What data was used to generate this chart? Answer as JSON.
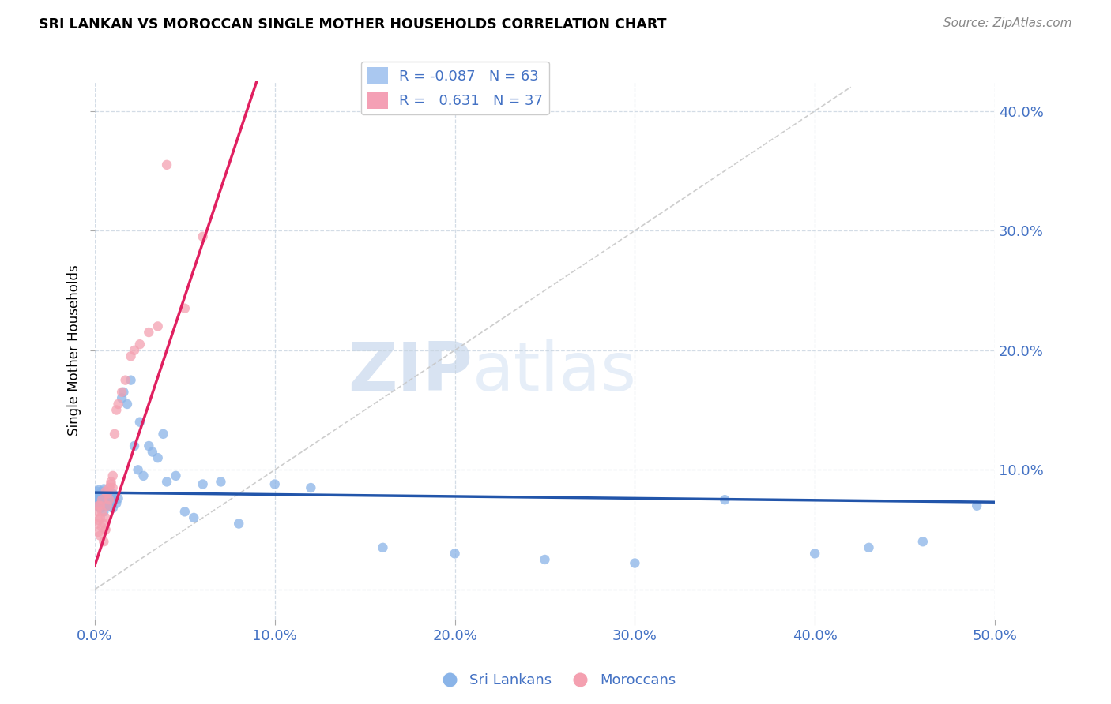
{
  "title": "SRI LANKAN VS MOROCCAN SINGLE MOTHER HOUSEHOLDS CORRELATION CHART",
  "source": "Source: ZipAtlas.com",
  "ylabel": "Single Mother Households",
  "xlim": [
    0.0,
    0.5
  ],
  "ylim": [
    -0.025,
    0.425
  ],
  "yticks": [
    0.0,
    0.1,
    0.2,
    0.3,
    0.4
  ],
  "xticks": [
    0.0,
    0.1,
    0.2,
    0.3,
    0.4,
    0.5
  ],
  "xtick_labels": [
    "0.0%",
    "10.0%",
    "20.0%",
    "30.0%",
    "40.0%",
    "50.0%"
  ],
  "ytick_labels": [
    "",
    "10.0%",
    "20.0%",
    "30.0%",
    "40.0%"
  ],
  "sri_lankans_color": "#8ab4e8",
  "moroccans_color": "#f4a0b0",
  "sri_lankans_line_color": "#2255aa",
  "moroccans_line_color": "#e02060",
  "diagonal_color": "#c8c8c8",
  "legend_sri_r": "-0.087",
  "legend_sri_n": "63",
  "legend_mor_r": "0.631",
  "legend_mor_n": "37",
  "watermark_zip": "ZIP",
  "watermark_atlas": "atlas",
  "sri_lankans_x": [
    0.001,
    0.001,
    0.001,
    0.001,
    0.002,
    0.002,
    0.002,
    0.002,
    0.003,
    0.003,
    0.003,
    0.004,
    0.004,
    0.004,
    0.005,
    0.005,
    0.005,
    0.005,
    0.006,
    0.006,
    0.006,
    0.007,
    0.007,
    0.008,
    0.008,
    0.009,
    0.009,
    0.01,
    0.01,
    0.01,
    0.011,
    0.012,
    0.013,
    0.015,
    0.016,
    0.018,
    0.02,
    0.022,
    0.024,
    0.025,
    0.027,
    0.03,
    0.032,
    0.035,
    0.038,
    0.04,
    0.045,
    0.05,
    0.055,
    0.06,
    0.07,
    0.08,
    0.1,
    0.12,
    0.16,
    0.2,
    0.25,
    0.3,
    0.35,
    0.4,
    0.43,
    0.46,
    0.49
  ],
  "sri_lankans_y": [
    0.07,
    0.075,
    0.078,
    0.082,
    0.072,
    0.076,
    0.079,
    0.083,
    0.068,
    0.074,
    0.08,
    0.07,
    0.077,
    0.082,
    0.065,
    0.072,
    0.078,
    0.084,
    0.07,
    0.075,
    0.081,
    0.073,
    0.079,
    0.07,
    0.076,
    0.072,
    0.078,
    0.068,
    0.074,
    0.08,
    0.075,
    0.072,
    0.076,
    0.16,
    0.165,
    0.155,
    0.175,
    0.12,
    0.1,
    0.14,
    0.095,
    0.12,
    0.115,
    0.11,
    0.13,
    0.09,
    0.095,
    0.065,
    0.06,
    0.088,
    0.09,
    0.055,
    0.088,
    0.085,
    0.035,
    0.03,
    0.025,
    0.022,
    0.075,
    0.03,
    0.035,
    0.04,
    0.07
  ],
  "moroccans_x": [
    0.001,
    0.001,
    0.002,
    0.002,
    0.002,
    0.003,
    0.003,
    0.003,
    0.004,
    0.004,
    0.004,
    0.005,
    0.005,
    0.006,
    0.006,
    0.006,
    0.007,
    0.007,
    0.008,
    0.008,
    0.009,
    0.009,
    0.01,
    0.01,
    0.011,
    0.012,
    0.013,
    0.015,
    0.017,
    0.02,
    0.022,
    0.025,
    0.03,
    0.035,
    0.04,
    0.05,
    0.06
  ],
  "moroccans_y": [
    0.055,
    0.065,
    0.048,
    0.058,
    0.07,
    0.045,
    0.06,
    0.07,
    0.052,
    0.065,
    0.075,
    0.04,
    0.055,
    0.05,
    0.06,
    0.082,
    0.07,
    0.08,
    0.075,
    0.085,
    0.088,
    0.09,
    0.085,
    0.095,
    0.13,
    0.15,
    0.155,
    0.165,
    0.175,
    0.195,
    0.2,
    0.205,
    0.215,
    0.22,
    0.355,
    0.235,
    0.295
  ]
}
